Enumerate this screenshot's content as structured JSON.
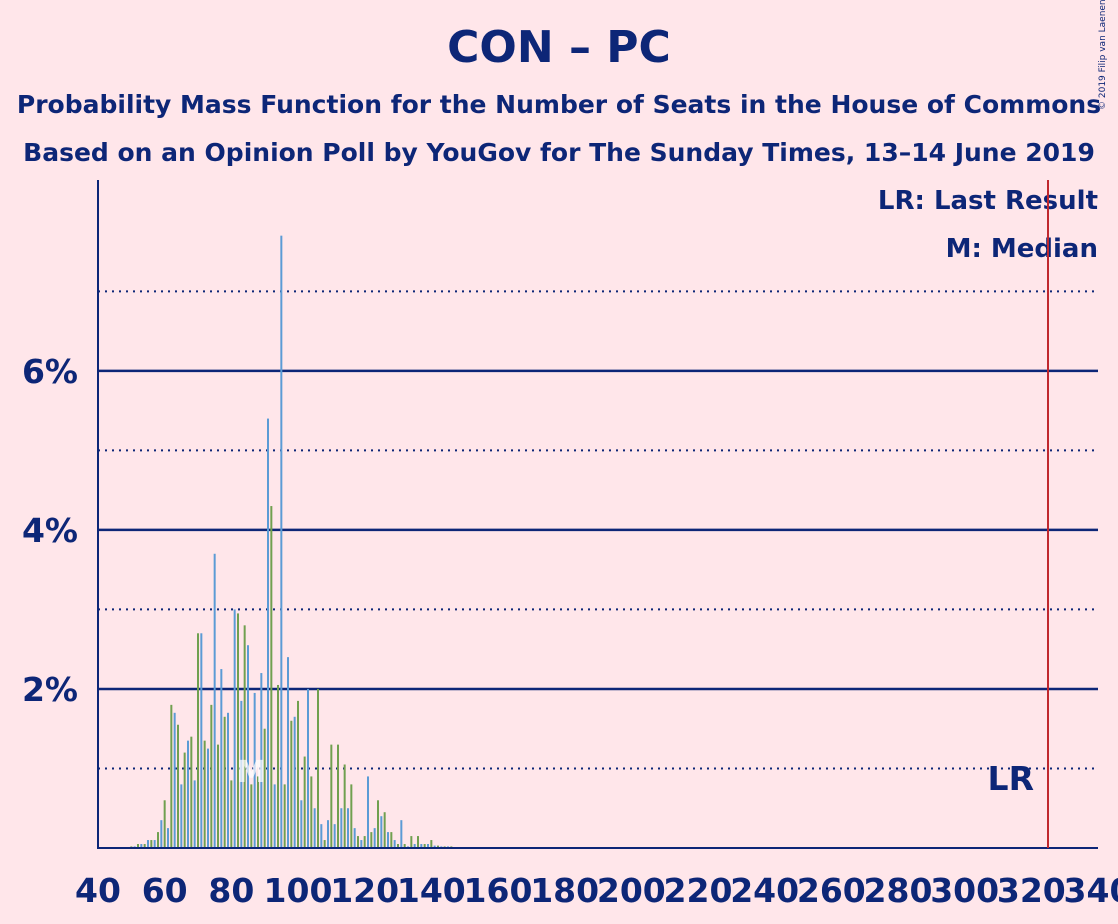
{
  "title": "CON – PC",
  "subtitle1": "Probability Mass Function for the Number of Seats in the House of Commons",
  "subtitle2": "Based on an Opinion Poll by YouGov for The Sunday Times, 13–14 June 2019",
  "copyright": "© 2019 Filip van Laenen",
  "legend": {
    "lr": "LR: Last Result",
    "m": "M: Median"
  },
  "colors": {
    "text": "#0d2677",
    "background": "#ffe6ea",
    "lr_line": "#c0282e",
    "bar_a": "#5b9bd5",
    "bar_b": "#70a050"
  },
  "chart_data": {
    "type": "bar",
    "xlim": [
      40,
      340
    ],
    "ylim": [
      0,
      8.4
    ],
    "x_ticks": [
      40,
      60,
      80,
      100,
      120,
      140,
      160,
      180,
      200,
      220,
      240,
      260,
      280,
      300,
      320,
      340
    ],
    "y_ticks": [
      {
        "value": 2,
        "label": "2%"
      },
      {
        "value": 4,
        "label": "4%"
      },
      {
        "value": 6,
        "label": "6%"
      }
    ],
    "minor_gridlines": [
      1,
      3,
      5,
      7
    ],
    "last_result": {
      "seat": 325,
      "label": "LR"
    },
    "median": {
      "seat": 86,
      "label": "M"
    },
    "x": [
      49,
      50,
      51,
      52,
      53,
      54,
      55,
      56,
      57,
      58,
      59,
      60,
      61,
      62,
      63,
      64,
      65,
      66,
      67,
      68,
      69,
      70,
      71,
      72,
      73,
      74,
      75,
      76,
      77,
      78,
      79,
      80,
      81,
      82,
      83,
      84,
      85,
      86,
      87,
      88,
      89,
      90,
      91,
      92,
      93,
      94,
      95,
      96,
      97,
      98,
      99,
      100,
      101,
      102,
      103,
      104,
      105,
      106,
      107,
      108,
      109,
      110,
      111,
      112,
      113,
      114,
      115,
      116,
      117,
      118,
      119,
      120,
      121,
      122,
      123,
      124,
      125,
      126,
      127,
      128,
      129,
      130,
      131,
      132,
      133,
      134,
      135,
      136,
      137,
      138,
      139,
      140,
      141,
      142,
      143,
      144,
      145,
      146,
      147,
      148,
      149,
      150
    ],
    "values": [
      0.01,
      0.02,
      0.02,
      0.05,
      0.05,
      0.05,
      0.1,
      0.1,
      0.1,
      0.2,
      0.35,
      0.6,
      0.25,
      1.8,
      1.7,
      1.55,
      0.8,
      1.2,
      1.35,
      1.4,
      0.85,
      2.7,
      2.7,
      1.35,
      1.25,
      1.8,
      3.7,
      1.3,
      2.25,
      1.65,
      1.7,
      0.85,
      3.0,
      2.95,
      1.85,
      2.8,
      2.55,
      0.8,
      1.95,
      0.9,
      2.2,
      1.5,
      5.4,
      4.3,
      0.8,
      2.05,
      7.7,
      0.8,
      2.4,
      1.6,
      1.65,
      1.85,
      0.6,
      1.15,
      2.0,
      0.9,
      0.5,
      2.0,
      0.3,
      0.1,
      0.35,
      1.3,
      0.3,
      1.3,
      0.5,
      1.05,
      0.5,
      0.8,
      0.25,
      0.15,
      0.1,
      0.15,
      0.9,
      0.2,
      0.25,
      0.6,
      0.4,
      0.45,
      0.2,
      0.2,
      0.1,
      0.05,
      0.35,
      0.05,
      0.02,
      0.15,
      0.05,
      0.15,
      0.05,
      0.05,
      0.05,
      0.1,
      0.03,
      0.03,
      0.02,
      0.02,
      0.02,
      0.02,
      0.01,
      0.01,
      0.01,
      0.01
    ]
  }
}
